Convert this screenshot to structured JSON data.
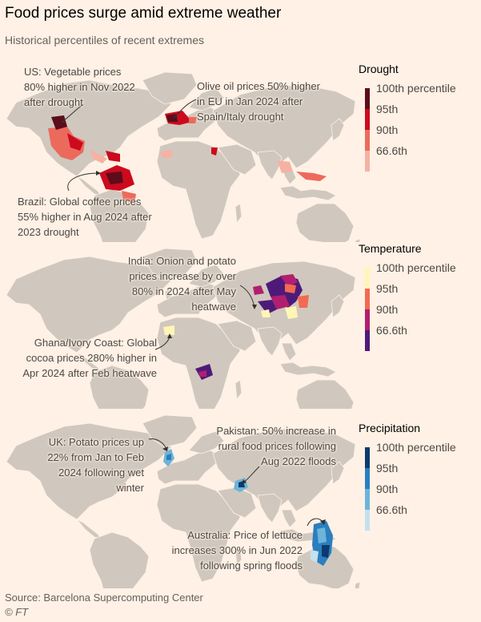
{
  "title": "Food prices surge amid extreme weather",
  "subtitle": "Historical percentiles of recent extremes",
  "colors": {
    "land": "#d0c8be",
    "drought": [
      "#5c0c1a",
      "#cc0a1e",
      "#ec6a5c",
      "#f5b2a4"
    ],
    "temperature": [
      "#fff6b5",
      "#f26a4f",
      "#b11f6e",
      "#4e1a7a"
    ],
    "precipitation": [
      "#0d3a6e",
      "#2a7fbf",
      "#6db4d8",
      "#c6e0ef"
    ]
  },
  "legends": [
    {
      "title": "Drought",
      "labels": [
        "100th percentile",
        "95th",
        "90th",
        "66.6th"
      ]
    },
    {
      "title": "Temperature",
      "labels": [
        "100th percentile",
        "95th",
        "90th",
        "66.6th"
      ]
    },
    {
      "title": "Precipitation",
      "labels": [
        "100th percentile",
        "95th",
        "90th",
        "66.6th"
      ]
    }
  ],
  "annotations": {
    "us": "US: Vegetable prices 80% higher in Nov 2022 after drought",
    "olive": "Olive oil prices 50% higher in EU in Jan 2024 after Spain/Italy drought",
    "brazil": "Brazil: Global coffee prices 55% higher in Aug 2024 after 2023 drought",
    "india": "India: Onion and potato prices increase by over 80% in 2024 after May heatwave",
    "ghana": "Ghana/Ivory Coast: Global cocoa prices 280% higher in Apr 2024 after Feb heatwave",
    "uk": "UK: Potato prices up 22% from Jan to Feb 2024 following wet winter",
    "pakistan": "Pakistan: 50% increase in rural food prices following Aug 2022 floods",
    "australia": "Australia: Price of lettuce increases 300% in Jun 2022 following spring floods"
  },
  "source": "Source: Barcelona Supercomputing Center",
  "credit": "© FT"
}
